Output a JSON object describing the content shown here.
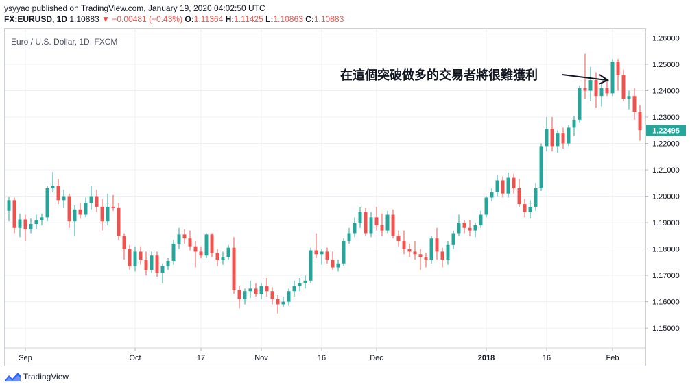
{
  "header": {
    "published": "ysyyao published on TradingView.com, January 19, 2020 04:02:50 UTC",
    "symbol": "FX:EURUSD, 1D",
    "last": "1.10883",
    "change": "−0.00481 (−0.43%)",
    "o_label": "O:",
    "o_value": "1.11364",
    "h_label": "H:",
    "h_value": "1.11425",
    "l_label": "L:",
    "l_value": "1.10863",
    "c_label": "C:",
    "c_value": "1.10883"
  },
  "footer": {
    "brand": "TradingView"
  },
  "colors": {
    "up": "#26a69a",
    "down": "#ef5350",
    "grid": "#eef0f3",
    "axis": "#787b86"
  },
  "chart_data": {
    "type": "candlestick",
    "title": "Euro / U.S. Dollar, 1D, FXCM",
    "annotation": "在這個突破做多的交易者將很難獲利",
    "last_price_label": "1.22495",
    "ylim": [
      1.1425,
      1.2635
    ],
    "y_ticks": [
      "1.15000",
      "1.16000",
      "1.17000",
      "1.18000",
      "1.19000",
      "1.20000",
      "1.21000",
      "1.22000",
      "1.23000",
      "1.24000",
      "1.25000",
      "1.26000"
    ],
    "x_ticks": [
      {
        "label": "Sep",
        "index": 3
      },
      {
        "label": "Oct",
        "index": 23
      },
      {
        "label": "17",
        "index": 35
      },
      {
        "label": "Nov",
        "index": 46
      },
      {
        "label": "16",
        "index": 57
      },
      {
        "label": "Dec",
        "index": 67
      },
      {
        "label": "2018",
        "index": 87
      },
      {
        "label": "16",
        "index": 98
      },
      {
        "label": "Feb",
        "index": 110
      }
    ],
    "ohlc": [
      [
        1.1945,
        1.1998,
        1.1905,
        1.1985
      ],
      [
        1.1985,
        1.1995,
        1.186,
        1.188
      ],
      [
        1.188,
        1.1935,
        1.1845,
        1.1912
      ],
      [
        1.1912,
        1.193,
        1.183,
        1.1875
      ],
      [
        1.1875,
        1.1915,
        1.186,
        1.1895
      ],
      [
        1.1895,
        1.193,
        1.1875,
        1.191
      ],
      [
        1.191,
        1.1935,
        1.189,
        1.192
      ],
      [
        1.192,
        1.204,
        1.1905,
        1.203
      ],
      [
        1.203,
        1.2092,
        1.2015,
        1.204
      ],
      [
        1.204,
        1.2065,
        1.197,
        1.1985
      ],
      [
        1.1985,
        1.2025,
        1.1955,
        1.2
      ],
      [
        1.2,
        1.201,
        1.188,
        1.1905
      ],
      [
        1.1905,
        1.1965,
        1.185,
        1.195
      ],
      [
        1.195,
        1.1975,
        1.1915,
        1.193
      ],
      [
        1.193,
        1.1995,
        1.192,
        1.1975
      ],
      [
        1.1975,
        1.204,
        1.195,
        1.2
      ],
      [
        1.2,
        1.2025,
        1.194,
        1.196
      ],
      [
        1.196,
        1.199,
        1.187,
        1.1905
      ],
      [
        1.1905,
        1.201,
        1.189,
        1.196
      ],
      [
        1.196,
        1.2005,
        1.1945,
        1.1955
      ],
      [
        1.1955,
        1.1975,
        1.1835,
        1.185
      ],
      [
        1.185,
        1.186,
        1.176,
        1.18
      ],
      [
        1.18,
        1.1815,
        1.172,
        1.1735
      ],
      [
        1.1735,
        1.181,
        1.1715,
        1.179
      ],
      [
        1.179,
        1.181,
        1.174,
        1.176
      ],
      [
        1.176,
        1.179,
        1.17,
        1.172
      ],
      [
        1.172,
        1.179,
        1.171,
        1.1775
      ],
      [
        1.1775,
        1.179,
        1.1695,
        1.171
      ],
      [
        1.171,
        1.1745,
        1.167,
        1.1735
      ],
      [
        1.1735,
        1.1765,
        1.172,
        1.1755
      ],
      [
        1.1755,
        1.1835,
        1.174,
        1.182
      ],
      [
        1.182,
        1.188,
        1.18,
        1.1855
      ],
      [
        1.1855,
        1.1875,
        1.182,
        1.184
      ],
      [
        1.184,
        1.187,
        1.1795,
        1.181
      ],
      [
        1.181,
        1.183,
        1.173,
        1.179
      ],
      [
        1.179,
        1.181,
        1.1765,
        1.1775
      ],
      [
        1.1775,
        1.186,
        1.1765,
        1.1855
      ],
      [
        1.1855,
        1.186,
        1.177,
        1.1785
      ],
      [
        1.1785,
        1.18,
        1.1735,
        1.176
      ],
      [
        1.176,
        1.179,
        1.174,
        1.177
      ],
      [
        1.177,
        1.1815,
        1.176,
        1.1805
      ],
      [
        1.1805,
        1.1845,
        1.163,
        1.1645
      ],
      [
        1.1645,
        1.166,
        1.1575,
        1.161
      ],
      [
        1.161,
        1.165,
        1.159,
        1.164
      ],
      [
        1.164,
        1.168,
        1.1615,
        1.165
      ],
      [
        1.165,
        1.167,
        1.162,
        1.163
      ],
      [
        1.163,
        1.167,
        1.161,
        1.166
      ],
      [
        1.166,
        1.169,
        1.162,
        1.164
      ],
      [
        1.164,
        1.1655,
        1.159,
        1.161
      ],
      [
        1.161,
        1.1625,
        1.1555,
        1.159
      ],
      [
        1.159,
        1.162,
        1.158,
        1.16
      ],
      [
        1.16,
        1.165,
        1.1585,
        1.164
      ],
      [
        1.164,
        1.168,
        1.162,
        1.166
      ],
      [
        1.166,
        1.169,
        1.164,
        1.167
      ],
      [
        1.167,
        1.17,
        1.165,
        1.168
      ],
      [
        1.168,
        1.1805,
        1.167,
        1.1795
      ],
      [
        1.1795,
        1.186,
        1.1765,
        1.178
      ],
      [
        1.178,
        1.18,
        1.174,
        1.179
      ],
      [
        1.179,
        1.1805,
        1.1745,
        1.176
      ],
      [
        1.176,
        1.179,
        1.172,
        1.173
      ],
      [
        1.173,
        1.176,
        1.1715,
        1.1745
      ],
      [
        1.1745,
        1.184,
        1.1735,
        1.183
      ],
      [
        1.183,
        1.188,
        1.182,
        1.186
      ],
      [
        1.186,
        1.192,
        1.1845,
        1.19
      ],
      [
        1.19,
        1.196,
        1.188,
        1.194
      ],
      [
        1.194,
        1.1955,
        1.185,
        1.186
      ],
      [
        1.186,
        1.194,
        1.1845,
        1.192
      ],
      [
        1.192,
        1.196,
        1.187,
        1.189
      ],
      [
        1.189,
        1.1935,
        1.185,
        1.187
      ],
      [
        1.187,
        1.1945,
        1.186,
        1.193
      ],
      [
        1.193,
        1.195,
        1.184,
        1.185
      ],
      [
        1.185,
        1.187,
        1.181,
        1.183
      ],
      [
        1.183,
        1.187,
        1.178,
        1.18
      ],
      [
        1.18,
        1.182,
        1.177,
        1.179
      ],
      [
        1.179,
        1.183,
        1.176,
        1.178
      ],
      [
        1.178,
        1.18,
        1.172,
        1.177
      ],
      [
        1.177,
        1.1785,
        1.173,
        1.176
      ],
      [
        1.176,
        1.185,
        1.1745,
        1.184
      ],
      [
        1.184,
        1.188,
        1.176,
        1.179
      ],
      [
        1.179,
        1.1805,
        1.173,
        1.176
      ],
      [
        1.176,
        1.183,
        1.174,
        1.1815
      ],
      [
        1.1815,
        1.187,
        1.18,
        1.186
      ],
      [
        1.186,
        1.193,
        1.185,
        1.19
      ],
      [
        1.19,
        1.191,
        1.186,
        1.188
      ],
      [
        1.188,
        1.191,
        1.185,
        1.187
      ],
      [
        1.187,
        1.19,
        1.1845,
        1.189
      ],
      [
        1.189,
        1.1945,
        1.188,
        1.193
      ],
      [
        1.193,
        1.2,
        1.192,
        1.1995
      ],
      [
        1.1995,
        1.203,
        1.198,
        1.2015
      ],
      [
        1.2015,
        1.208,
        1.2,
        1.206
      ],
      [
        1.206,
        1.2075,
        1.1995,
        1.201
      ],
      [
        1.201,
        1.209,
        1.1995,
        1.207
      ],
      [
        1.207,
        1.2085,
        1.201,
        1.203
      ],
      [
        1.203,
        1.2065,
        1.196,
        1.197
      ],
      [
        1.197,
        1.199,
        1.192,
        1.194
      ],
      [
        1.194,
        1.1985,
        1.1915,
        1.196
      ],
      [
        1.196,
        1.205,
        1.1945,
        1.203
      ],
      [
        1.203,
        1.22,
        1.202,
        1.219
      ],
      [
        1.219,
        1.23,
        1.217,
        1.2255
      ],
      [
        1.2255,
        1.23,
        1.217,
        1.219
      ],
      [
        1.219,
        1.225,
        1.2165,
        1.224
      ],
      [
        1.224,
        1.226,
        1.218,
        1.22
      ],
      [
        1.22,
        1.227,
        1.219,
        1.226
      ],
      [
        1.226,
        1.2305,
        1.223,
        1.229
      ],
      [
        1.229,
        1.242,
        1.228,
        1.241
      ],
      [
        1.241,
        1.254,
        1.237,
        1.24
      ],
      [
        1.24,
        1.249,
        1.236,
        1.244
      ],
      [
        1.244,
        1.247,
        1.2335,
        1.238
      ],
      [
        1.238,
        1.243,
        1.234,
        1.241
      ],
      [
        1.241,
        1.244,
        1.238,
        1.239
      ],
      [
        1.239,
        1.252,
        1.238,
        1.251
      ],
      [
        1.251,
        1.252,
        1.24,
        1.246
      ],
      [
        1.246,
        1.248,
        1.236,
        1.237
      ],
      [
        1.237,
        1.24,
        1.233,
        1.238
      ],
      [
        1.238,
        1.241,
        1.229,
        1.232
      ],
      [
        1.232,
        1.2345,
        1.221,
        1.225
      ]
    ]
  }
}
